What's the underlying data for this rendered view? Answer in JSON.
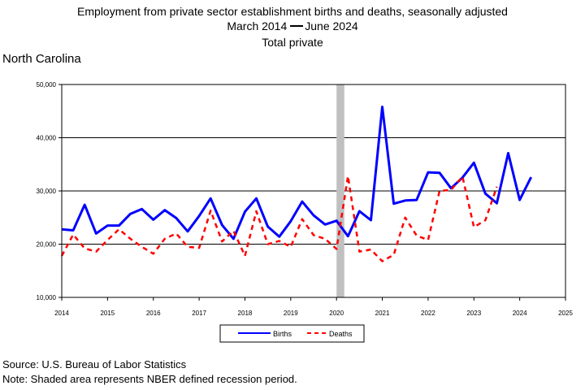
{
  "header": {
    "title": "Employment from private sector establishment births and deaths, seasonally adjusted",
    "range_start": "March 2014",
    "range_end": "June 2024",
    "subtitle": "Total private",
    "region": "North Carolina"
  },
  "footer": {
    "source": "Source: U.S. Bureau of Labor Statistics",
    "note": "Note: Shaded area represents NBER defined recession period."
  },
  "chart_data": {
    "type": "line",
    "xlim": [
      2014,
      2025
    ],
    "ylim": [
      10000,
      50000
    ],
    "x_ticks": [
      "2014",
      "2015",
      "2016",
      "2017",
      "2018",
      "2019",
      "2020",
      "2021",
      "2022",
      "2023",
      "2024",
      "2025"
    ],
    "y_ticks": [
      "10,000",
      "20,000",
      "30,000",
      "40,000",
      "50,000"
    ],
    "y_tick_values": [
      10000,
      20000,
      30000,
      40000,
      50000
    ],
    "grid": "horizontal",
    "legend_position": "bottom",
    "recession_band": [
      2020.0,
      2020.17
    ],
    "colors": {
      "births": "#0000ff",
      "deaths": "#ff0000",
      "recession": "#c0c0c0"
    },
    "series": [
      {
        "name": "Births",
        "style": "solid",
        "values": [
          [
            2014.0,
            22800
          ],
          [
            2014.25,
            22600
          ],
          [
            2014.5,
            27400
          ],
          [
            2014.75,
            22000
          ],
          [
            2015.0,
            23500
          ],
          [
            2015.25,
            23500
          ],
          [
            2015.5,
            25700
          ],
          [
            2015.75,
            26600
          ],
          [
            2016.0,
            24600
          ],
          [
            2016.25,
            26400
          ],
          [
            2016.5,
            24900
          ],
          [
            2016.75,
            22400
          ],
          [
            2017.0,
            25300
          ],
          [
            2017.25,
            28600
          ],
          [
            2017.5,
            23600
          ],
          [
            2017.75,
            21000
          ],
          [
            2018.0,
            26100
          ],
          [
            2018.25,
            28600
          ],
          [
            2018.5,
            23300
          ],
          [
            2018.75,
            21400
          ],
          [
            2019.0,
            24300
          ],
          [
            2019.25,
            28000
          ],
          [
            2019.5,
            25400
          ],
          [
            2019.75,
            23700
          ],
          [
            2020.0,
            24400
          ],
          [
            2020.25,
            21500
          ],
          [
            2020.5,
            26200
          ],
          [
            2020.75,
            24500
          ],
          [
            2021.0,
            45800
          ],
          [
            2021.25,
            27600
          ],
          [
            2021.5,
            28200
          ],
          [
            2021.75,
            28300
          ],
          [
            2022.0,
            33500
          ],
          [
            2022.25,
            33400
          ],
          [
            2022.5,
            30500
          ],
          [
            2022.75,
            32500
          ],
          [
            2023.0,
            35300
          ],
          [
            2023.25,
            29500
          ],
          [
            2023.5,
            27700
          ],
          [
            2023.75,
            37100
          ],
          [
            2024.0,
            28300
          ],
          [
            2024.25,
            32600
          ]
        ]
      },
      {
        "name": "Deaths",
        "style": "dashed",
        "values": [
          [
            2014.0,
            17800
          ],
          [
            2014.25,
            21800
          ],
          [
            2014.5,
            19200
          ],
          [
            2014.75,
            18600
          ],
          [
            2015.0,
            20800
          ],
          [
            2015.25,
            22800
          ],
          [
            2015.5,
            21000
          ],
          [
            2015.75,
            19500
          ],
          [
            2016.0,
            18200
          ],
          [
            2016.25,
            21000
          ],
          [
            2016.5,
            22000
          ],
          [
            2016.75,
            19500
          ],
          [
            2017.0,
            19300
          ],
          [
            2017.25,
            26300
          ],
          [
            2017.5,
            20500
          ],
          [
            2017.75,
            22500
          ],
          [
            2018.0,
            17800
          ],
          [
            2018.25,
            26200
          ],
          [
            2018.5,
            20000
          ],
          [
            2018.75,
            20600
          ],
          [
            2019.0,
            19500
          ],
          [
            2019.25,
            24700
          ],
          [
            2019.5,
            21700
          ],
          [
            2019.75,
            21000
          ],
          [
            2020.0,
            19100
          ],
          [
            2020.25,
            32800
          ],
          [
            2020.5,
            18600
          ],
          [
            2020.75,
            19000
          ],
          [
            2021.0,
            16800
          ],
          [
            2021.25,
            18000
          ],
          [
            2021.5,
            25000
          ],
          [
            2021.75,
            21600
          ],
          [
            2022.0,
            20800
          ],
          [
            2022.25,
            30000
          ],
          [
            2022.5,
            30200
          ],
          [
            2022.75,
            32700
          ],
          [
            2023.0,
            23200
          ],
          [
            2023.25,
            24500
          ],
          [
            2023.5,
            30800
          ]
        ]
      }
    ]
  }
}
